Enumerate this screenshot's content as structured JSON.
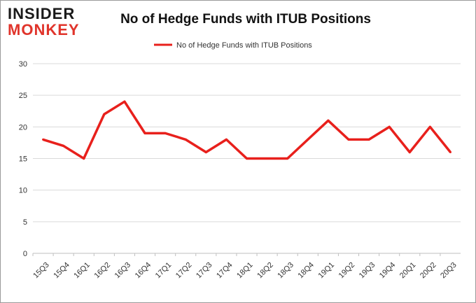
{
  "logo": {
    "line1": "INSIDER",
    "line2": "MONKEY"
  },
  "chart_data": {
    "type": "line",
    "title": "No of Hedge Funds with ITUB Positions",
    "xlabel": "",
    "ylabel": "",
    "categories": [
      "15Q3",
      "15Q4",
      "16Q1",
      "16Q2",
      "16Q3",
      "16Q4",
      "17Q1",
      "17Q2",
      "17Q3",
      "17Q4",
      "18Q1",
      "18Q2",
      "18Q3",
      "18Q4",
      "19Q1",
      "19Q2",
      "19Q3",
      "19Q4",
      "20Q1",
      "20Q2",
      "20Q3"
    ],
    "series": [
      {
        "name": "No of Hedge Funds with ITUB  Positions",
        "values": [
          18,
          17,
          15,
          22,
          24,
          19,
          19,
          18,
          16,
          18,
          15,
          15,
          15,
          18,
          21,
          18,
          18,
          20,
          16,
          20,
          16
        ],
        "color": "#e8201c"
      }
    ],
    "ylim": [
      0,
      30
    ],
    "yticks": [
      0,
      5,
      10,
      15,
      20,
      25,
      30
    ],
    "grid": true,
    "legend": "top-center"
  }
}
